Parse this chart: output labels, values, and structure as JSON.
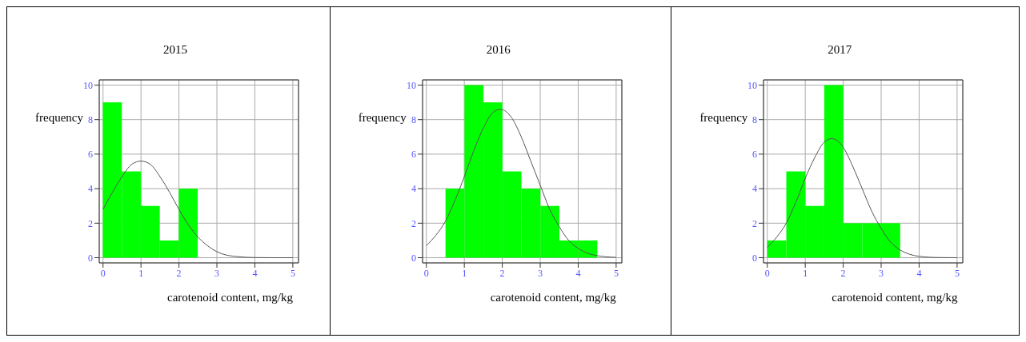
{
  "chart_data": [
    {
      "type": "histogram",
      "title": "2015",
      "xlabel": "carotenoid content, mg/kg",
      "ylabel": "frequency",
      "xlim": [
        -0.1,
        5.15
      ],
      "ylim": [
        -0.3,
        10.3
      ],
      "xticks": [
        0,
        1,
        2,
        3,
        4,
        5
      ],
      "yticks": [
        0,
        2,
        4,
        6,
        8,
        10
      ],
      "grid": true,
      "series": [
        {
          "type": "histogram",
          "color": "#00ff00",
          "bins": [
            0,
            0.5,
            1,
            1.5,
            2,
            2.5
          ],
          "values": [
            9,
            5,
            3,
            1,
            4
          ]
        },
        {
          "type": "line",
          "color": "#555555",
          "x": [
            0,
            0.25,
            0.5,
            0.75,
            1,
            1.25,
            1.5,
            1.75,
            2,
            2.25,
            2.5,
            2.75,
            3,
            3.5,
            4,
            4.5,
            5
          ],
          "values": [
            2.8,
            3.8,
            4.7,
            5.4,
            5.6,
            5.4,
            4.7,
            3.8,
            2.8,
            1.9,
            1.2,
            0.7,
            0.35,
            0.07,
            0.01,
            0,
            0
          ]
        }
      ]
    },
    {
      "type": "histogram",
      "title": "2016",
      "xlabel": "carotenoid content, mg/kg",
      "ylabel": "frequency",
      "xlim": [
        -0.1,
        5.15
      ],
      "ylim": [
        -0.3,
        10.3
      ],
      "xticks": [
        0,
        1,
        2,
        3,
        4,
        5
      ],
      "yticks": [
        0,
        2,
        4,
        6,
        8,
        10
      ],
      "grid": true,
      "series": [
        {
          "type": "histogram",
          "color": "#00ff00",
          "bins": [
            0.5,
            1,
            1.5,
            2,
            2.5,
            3,
            3.5,
            4,
            4.5
          ],
          "values": [
            4,
            10,
            9,
            5,
            4,
            3,
            1,
            1
          ]
        },
        {
          "type": "line",
          "color": "#555555",
          "x": [
            0,
            0.25,
            0.5,
            0.75,
            1,
            1.25,
            1.5,
            1.75,
            1.95,
            2.25,
            2.5,
            2.75,
            3,
            3.25,
            3.5,
            3.75,
            4,
            4.25,
            4.5,
            4.75,
            5
          ],
          "values": [
            0.7,
            1.3,
            2.1,
            3.3,
            4.7,
            6.2,
            7.5,
            8.4,
            8.6,
            8.1,
            7.0,
            5.6,
            4.2,
            2.8,
            1.8,
            1.0,
            0.54,
            0.26,
            0.12,
            0.05,
            0.02
          ]
        }
      ]
    },
    {
      "type": "histogram",
      "title": "2017",
      "xlabel": "carotenoid content, mg/kg",
      "ylabel": "frequency",
      "xlim": [
        -0.1,
        5.15
      ],
      "ylim": [
        -0.3,
        10.3
      ],
      "xticks": [
        0,
        1,
        2,
        3,
        4,
        5
      ],
      "yticks": [
        0,
        2,
        4,
        6,
        8,
        10
      ],
      "grid": true,
      "series": [
        {
          "type": "histogram",
          "color": "#00ff00",
          "bins": [
            0,
            0.5,
            1,
            1.5,
            2,
            2.5,
            3,
            3.5
          ],
          "values": [
            1,
            5,
            3,
            10,
            2,
            2,
            2
          ]
        },
        {
          "type": "line",
          "color": "#555555",
          "x": [
            0,
            0.25,
            0.5,
            0.75,
            1,
            1.25,
            1.5,
            1.7,
            2,
            2.25,
            2.5,
            2.75,
            3,
            3.25,
            3.5,
            3.75,
            4,
            4.5,
            5
          ],
          "values": [
            0.6,
            1.2,
            2.0,
            3.2,
            4.6,
            5.8,
            6.7,
            6.9,
            6.4,
            5.3,
            4.0,
            2.7,
            1.7,
            0.9,
            0.45,
            0.2,
            0.08,
            0.01,
            0
          ]
        }
      ]
    }
  ]
}
